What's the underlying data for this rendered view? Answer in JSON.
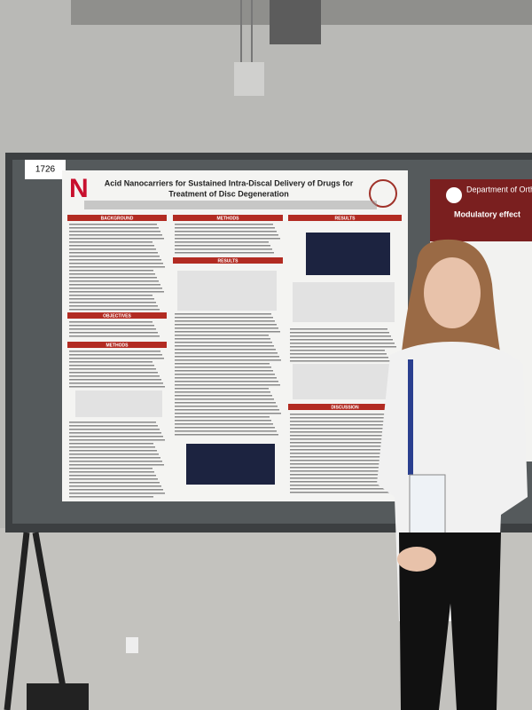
{
  "booth_number": "1726",
  "poster": {
    "title_line1": "Acid Nanocarriers for Sustained Intra-Discal Delivery of Drugs for",
    "title_line2": "Treatment of Disc Degeneration",
    "sections": [
      "BACKGROUND",
      "OBJECTIVES",
      "METHODS",
      "METHODS",
      "RESULTS",
      "RESULTS",
      "DISCUSSION"
    ]
  },
  "side_poster": {
    "header": "Department of Orthop",
    "title": "Modulatory effect"
  }
}
